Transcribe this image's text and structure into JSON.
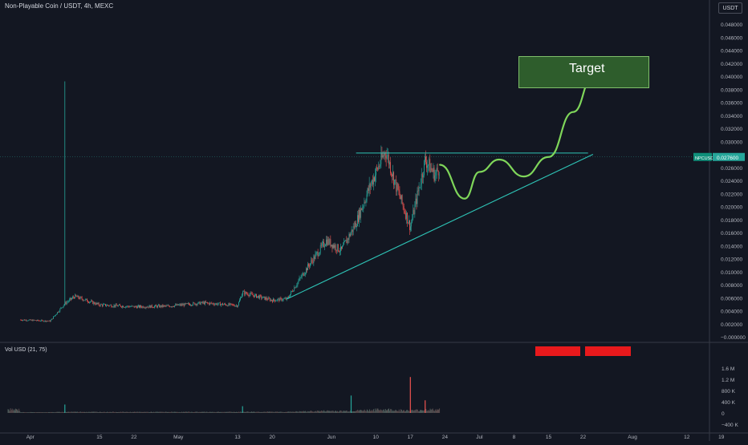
{
  "header": {
    "pair_title": "Non-Playable Coin / USDT, 4h, MEXC",
    "currency": "USDT"
  },
  "annotation": {
    "target_label": "Target"
  },
  "price_label": {
    "symbol": "NPCUSDT",
    "value": "0.027600"
  },
  "volume_panel": {
    "title": "Vol USD (21, 75)"
  },
  "colors": {
    "background": "#131722",
    "up": "#26a69a",
    "down": "#ef5350",
    "trendline": "#2ec4b6",
    "projection": "#7fd65a",
    "target_fill": "#2e5d2c",
    "badge_red": "#e8191c"
  },
  "chart_data": [
    {
      "type": "candlestick",
      "title": "Non-Playable Coin / USDT, 4h, MEXC",
      "y_axis": {
        "position": "right",
        "range": [
          -0.0002,
          0.0488
        ],
        "ticks": [
          "0.048000",
          "0.046000",
          "0.044000",
          "0.042000",
          "0.040000",
          "0.038000",
          "0.036000",
          "0.034000",
          "0.032000",
          "0.030000",
          "0.028000",
          "0.026000",
          "0.024000",
          "0.022000",
          "0.020000",
          "0.018000",
          "0.016000",
          "0.014000",
          "0.012000",
          "0.010000",
          "0.008000",
          "0.006000",
          "0.004000",
          "0.002000",
          "−0.000000"
        ]
      },
      "x_axis": {
        "ticks": [
          "Apr",
          "15",
          "22",
          "May",
          "13",
          "20",
          "Jun",
          "10",
          "17",
          "24",
          "Jul",
          "8",
          "15",
          "22",
          "Aug",
          "12",
          "19"
        ]
      },
      "current_price": 0.0276,
      "price_path": [
        {
          "date": "Mar 30",
          "price": 0.0026
        },
        {
          "date": "Apr 5",
          "price": 0.0024
        },
        {
          "date": "Apr 8",
          "price": 0.0051
        },
        {
          "date": "Apr 10",
          "price": 0.0062
        },
        {
          "date": "Apr 15",
          "price": 0.0049
        },
        {
          "date": "Apr 22",
          "price": 0.0046
        },
        {
          "date": "Apr 29",
          "price": 0.0047
        },
        {
          "date": "May 6",
          "price": 0.0052
        },
        {
          "date": "May 13",
          "price": 0.0048
        },
        {
          "date": "May 14",
          "price": 0.0068
        },
        {
          "date": "May 20",
          "price": 0.0056
        },
        {
          "date": "May 23",
          "price": 0.0058
        },
        {
          "date": "May 27",
          "price": 0.0105
        },
        {
          "date": "May 31",
          "price": 0.0148
        },
        {
          "date": "Jun 3",
          "price": 0.0132
        },
        {
          "date": "Jun 6",
          "price": 0.0175
        },
        {
          "date": "Jun 9",
          "price": 0.0235
        },
        {
          "date": "Jun 12",
          "price": 0.0286
        },
        {
          "date": "Jun 14",
          "price": 0.0234
        },
        {
          "date": "Jun 17",
          "price": 0.0168
        },
        {
          "date": "Jun 20",
          "price": 0.0272
        },
        {
          "date": "Jun 22",
          "price": 0.0248
        },
        {
          "date": "Jun 23",
          "price": 0.0262
        }
      ],
      "key_levels": {
        "historical_high": 0.0392,
        "resistance": 0.0282
      },
      "annotations": [
        {
          "type": "horizontal_line",
          "price": 0.0282,
          "from": "Jun 6",
          "to": "Jul 23"
        },
        {
          "type": "trendline",
          "from": {
            "date": "May 23",
            "price": 0.0058
          },
          "to": {
            "date": "Jul 24",
            "price": 0.028
          }
        },
        {
          "type": "projection",
          "path": [
            {
              "date": "Jun 23",
              "price": 0.0264
            },
            {
              "date": "Jun 28",
              "price": 0.0212
            },
            {
              "date": "Jul 1",
              "price": 0.0253
            },
            {
              "date": "Jul 5",
              "price": 0.0272
            },
            {
              "date": "Jul 10",
              "price": 0.0246
            },
            {
              "date": "Jul 15",
              "price": 0.0276
            },
            {
              "date": "Jul 20",
              "price": 0.0345
            },
            {
              "date": "Jul 24",
              "price": 0.0399
            }
          ]
        },
        {
          "type": "target_box",
          "label": "Target",
          "price_range": [
            0.0373,
            0.0421
          ],
          "date_range": [
            "Jul 13",
            "Aug 8"
          ]
        }
      ]
    },
    {
      "type": "bar",
      "title": "Vol USD (21, 75)",
      "y_axis": {
        "position": "right",
        "range": [
          -400000,
          1700000
        ],
        "ticks": [
          "1.6 M",
          "1.2 M",
          "800 K",
          "400 K",
          "0",
          "−400 K"
        ]
      },
      "highlights": [
        {
          "date": "Apr 8",
          "value": 300000,
          "color": "green"
        },
        {
          "date": "May 14",
          "value": 240000,
          "color": "green"
        },
        {
          "date": "Jun 17",
          "value": 1280000,
          "color": "red"
        },
        {
          "date": "Jun 5",
          "value": 620000,
          "color": "green"
        },
        {
          "date": "Jun 20",
          "value": 450000,
          "color": "red"
        }
      ]
    }
  ]
}
